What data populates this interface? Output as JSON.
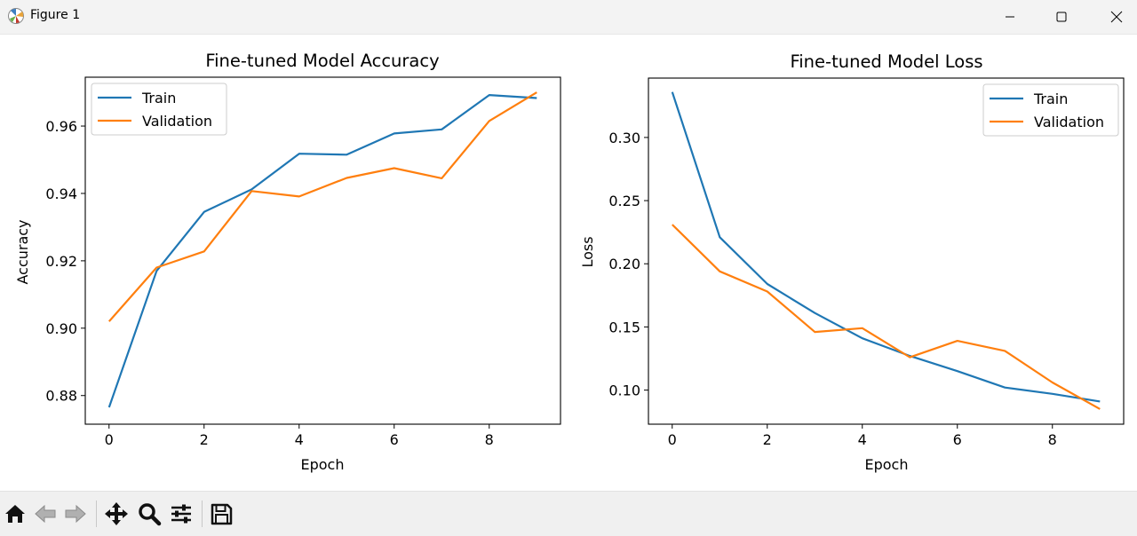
{
  "window": {
    "title": "Figure 1"
  },
  "icons": {
    "app": "matplotlib-figure-icon",
    "minimize": "minimize-icon",
    "maximize": "maximize-icon",
    "close": "close-icon"
  },
  "toolbar": {
    "buttons": [
      {
        "name": "home-icon"
      },
      {
        "name": "back-arrow-icon"
      },
      {
        "name": "forward-arrow-icon"
      },
      {
        "name": "pan-move-icon"
      },
      {
        "name": "zoom-magnifier-icon"
      },
      {
        "name": "configure-subplots-icon"
      },
      {
        "name": "save-floppy-icon"
      }
    ]
  },
  "colors": {
    "train": "#1f77b4",
    "validation": "#ff7f0e"
  },
  "chart_data": [
    {
      "type": "line",
      "title": "Fine-tuned Model Accuracy",
      "xlabel": "Epoch",
      "ylabel": "Accuracy",
      "x": [
        0,
        1,
        2,
        3,
        4,
        5,
        6,
        7,
        8,
        9
      ],
      "xlim": [
        -0.5,
        9.5
      ],
      "ylim": [
        0.8715,
        0.9745
      ],
      "xticks": [
        "0",
        "2",
        "4",
        "6",
        "8"
      ],
      "yticks": [
        "0.88",
        "0.90",
        "0.92",
        "0.94",
        "0.96"
      ],
      "legend_position": "upper-left",
      "grid": false,
      "series": [
        {
          "name": "Train",
          "values": [
            0.8765,
            0.917,
            0.9345,
            0.9412,
            0.9518,
            0.9515,
            0.9578,
            0.959,
            0.9692,
            0.9683
          ]
        },
        {
          "name": "Validation",
          "values": [
            0.902,
            0.918,
            0.9228,
            0.9407,
            0.9391,
            0.9446,
            0.9475,
            0.9445,
            0.9615,
            0.97
          ]
        }
      ]
    },
    {
      "type": "line",
      "title": "Fine-tuned Model Loss",
      "xlabel": "Epoch",
      "ylabel": "Loss",
      "x": [
        0,
        1,
        2,
        3,
        4,
        5,
        6,
        7,
        8,
        9
      ],
      "xlim": [
        -0.5,
        9.5
      ],
      "ylim": [
        0.073,
        0.347
      ],
      "xticks": [
        "0",
        "2",
        "4",
        "6",
        "8"
      ],
      "yticks": [
        "0.10",
        "0.15",
        "0.20",
        "0.25",
        "0.30"
      ],
      "legend_position": "upper-right",
      "grid": false,
      "series": [
        {
          "name": "Train",
          "values": [
            0.336,
            0.221,
            0.184,
            0.161,
            0.141,
            0.127,
            0.115,
            0.102,
            0.097,
            0.091
          ]
        },
        {
          "name": "Validation",
          "values": [
            0.231,
            0.194,
            0.178,
            0.146,
            0.149,
            0.126,
            0.139,
            0.131,
            0.106,
            0.085
          ]
        }
      ]
    }
  ]
}
